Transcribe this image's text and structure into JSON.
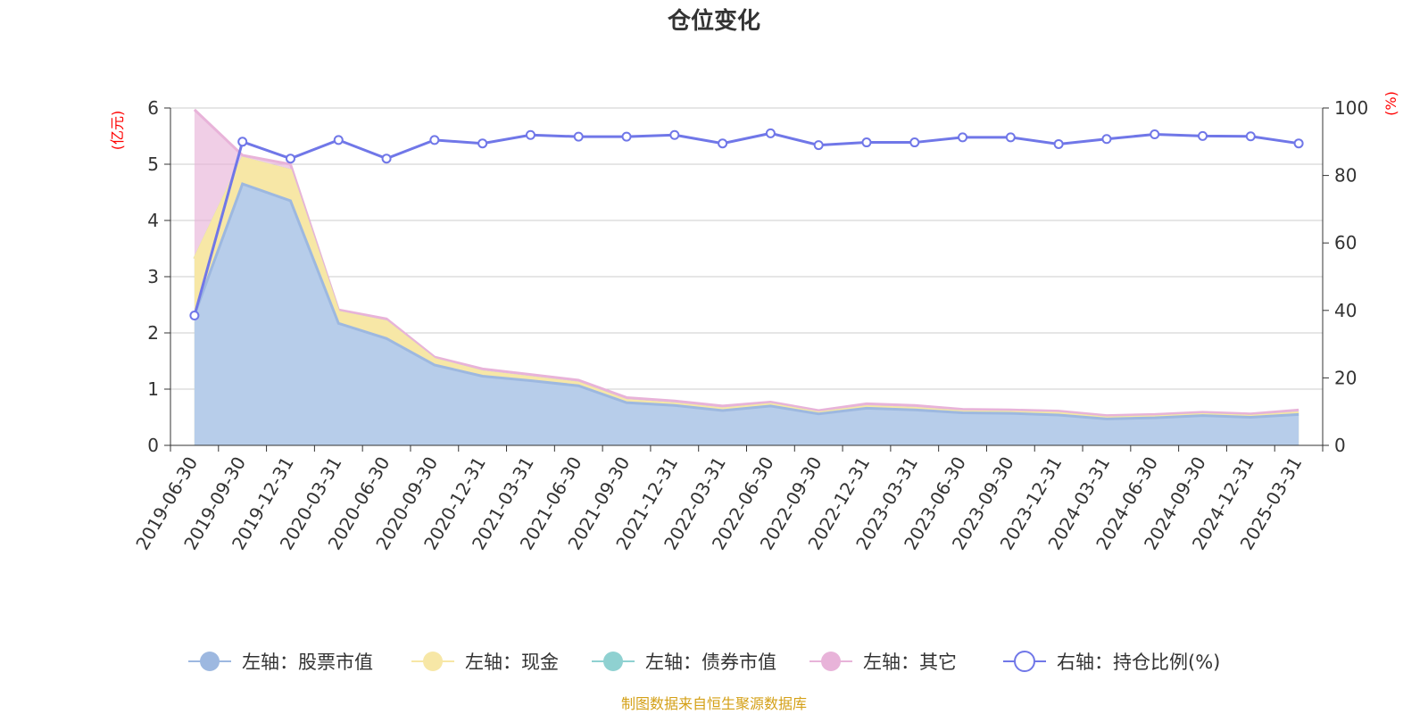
{
  "title": "仓位变化",
  "source_note": "制图数据来自恒生聚源数据库",
  "colors": {
    "stock": "#9db8e0",
    "stock_fill": "#b7cdea",
    "cash": "#f7e7a6",
    "bond": "#8fd1d1",
    "other": "#e8b3d9",
    "ratio": "#7077e8",
    "axis": "#333333",
    "grid": "#cccccc",
    "unit": "#ff0000",
    "source": "#d4a017"
  },
  "chart_data": {
    "type": "area",
    "title": "仓位变化",
    "left_axis": {
      "unit": "(亿元)",
      "range": [
        0,
        6
      ],
      "ticks": [
        "0",
        "1",
        "2",
        "3",
        "4",
        "5",
        "6"
      ]
    },
    "right_axis": {
      "unit": "(%)",
      "range": [
        0,
        100
      ],
      "ticks": [
        "0",
        "20",
        "40",
        "60",
        "80",
        "100"
      ]
    },
    "grid": true,
    "legend_position": "bottom",
    "categories": [
      "2019-06-30",
      "2019-09-30",
      "2019-12-31",
      "2020-03-31",
      "2020-06-30",
      "2020-09-30",
      "2020-12-31",
      "2021-03-31",
      "2021-06-30",
      "2021-09-30",
      "2021-12-31",
      "2022-03-31",
      "2022-06-30",
      "2022-09-30",
      "2022-12-31",
      "2023-03-31",
      "2023-06-30",
      "2023-09-30",
      "2023-12-31",
      "2024-03-31",
      "2024-06-30",
      "2024-09-30",
      "2024-12-31",
      "2025-03-31"
    ],
    "series": [
      {
        "name": "左轴：股票市值",
        "axis": "left",
        "stack": true,
        "values": [
          2.32,
          4.65,
          4.35,
          2.17,
          1.9,
          1.43,
          1.23,
          1.15,
          1.06,
          0.76,
          0.71,
          0.62,
          0.7,
          0.56,
          0.66,
          0.63,
          0.58,
          0.57,
          0.54,
          0.47,
          0.49,
          0.53,
          0.5,
          0.55
        ]
      },
      {
        "name": "左轴：现金",
        "axis": "left",
        "stack": true,
        "values": [
          1.0,
          0.46,
          0.54,
          0.2,
          0.3,
          0.1,
          0.08,
          0.06,
          0.05,
          0.04,
          0.03,
          0.03,
          0.03,
          0.02,
          0.03,
          0.03,
          0.02,
          0.02,
          0.03,
          0.02,
          0.02,
          0.02,
          0.02,
          0.03
        ]
      },
      {
        "name": "左轴：债券市值",
        "axis": "left",
        "stack": true,
        "values": [
          0,
          0,
          0,
          0,
          0,
          0,
          0,
          0,
          0,
          0,
          0,
          0,
          0,
          0,
          0,
          0,
          0,
          0,
          0,
          0,
          0,
          0,
          0,
          0
        ]
      },
      {
        "name": "左轴：其它",
        "axis": "left",
        "stack": true,
        "values": [
          2.65,
          0.05,
          0.11,
          0.04,
          0.05,
          0.04,
          0.05,
          0.05,
          0.05,
          0.05,
          0.05,
          0.05,
          0.04,
          0.04,
          0.05,
          0.05,
          0.04,
          0.04,
          0.04,
          0.04,
          0.04,
          0.04,
          0.04,
          0.05
        ]
      },
      {
        "name": "右轴：持仓比例(%)",
        "axis": "right",
        "type": "line",
        "values": [
          38.5,
          90,
          85,
          90.5,
          85,
          90.5,
          89.5,
          92,
          91.5,
          91.5,
          92,
          89.5,
          92.5,
          89,
          89.8,
          89.8,
          91.3,
          91.3,
          89.3,
          90.8,
          92.2,
          91.7,
          91.6,
          89.5
        ]
      }
    ]
  }
}
